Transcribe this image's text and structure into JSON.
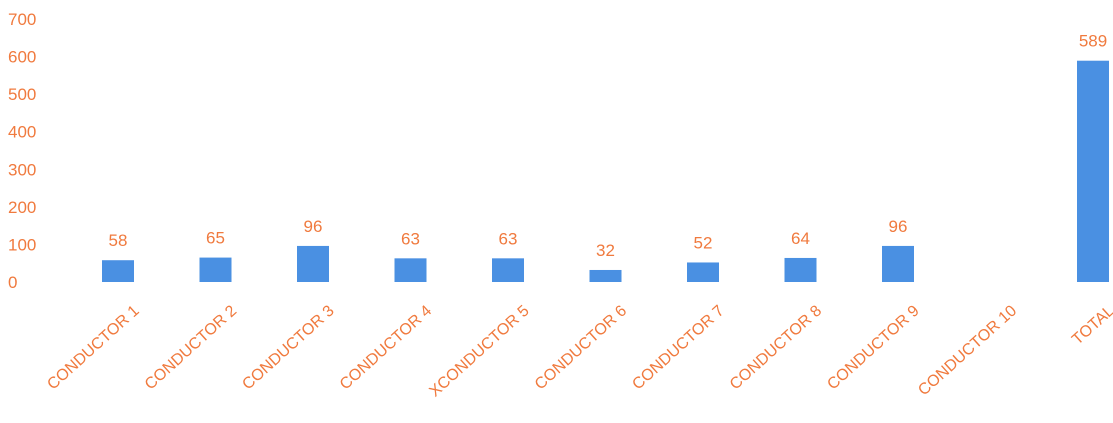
{
  "chart_data": {
    "type": "bar",
    "categories": [
      "CONDUCTOR 1",
      "CONDUCTOR 2",
      "CONDUCTOR 3",
      "CONDUCTOR 4",
      "XCONDUCTOR 5",
      "CONDUCTOR 6",
      "CONDUCTOR 7",
      "CONDUCTOR 8",
      "CONDUCTOR 9",
      "CONDUCTOR 10",
      "TOTAL"
    ],
    "values": [
      58,
      65,
      96,
      63,
      63,
      32,
      52,
      64,
      96,
      null,
      589
    ],
    "data_labels": [
      "58",
      "65",
      "96",
      "63",
      "63",
      "32",
      "52",
      "64",
      "96",
      "",
      "589"
    ],
    "ylim": [
      0,
      700
    ],
    "yticks": [
      0,
      100,
      200,
      300,
      400,
      500,
      600,
      700
    ],
    "grid": false,
    "legend": "none",
    "title": "",
    "xlabel": "",
    "ylabel": "",
    "colors": {
      "bar": "#4a90e2",
      "text": "#f07a3e"
    }
  }
}
